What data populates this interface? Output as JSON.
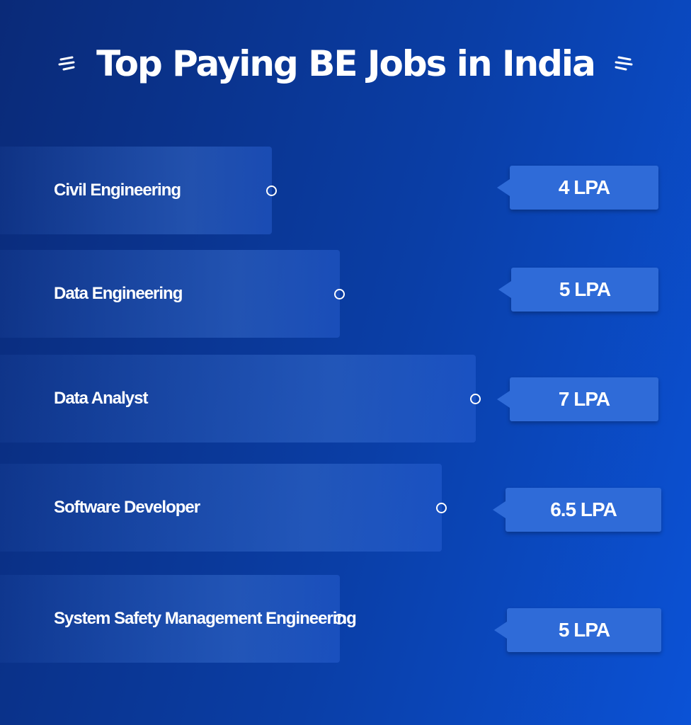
{
  "chart_data": {
    "type": "bar",
    "title": "Top Paying BE Jobs in India",
    "categories": [
      "Civil Engineering",
      "Data Engineering",
      "Data Analyst",
      "Software Developer",
      "System Safety Management Engineering"
    ],
    "value_labels": [
      "4 LPA",
      "5 LPA",
      "7 LPA",
      "6.5 LPA",
      "5 LPA"
    ],
    "values": [
      4,
      5,
      7,
      6.5,
      5
    ],
    "unit": "LPA",
    "xlim": [
      0,
      8
    ]
  },
  "colors": {
    "background_start": "#0a2a78",
    "background_end": "#0b52d6",
    "pill": "#2f6bd8",
    "text": "#ffffff"
  }
}
